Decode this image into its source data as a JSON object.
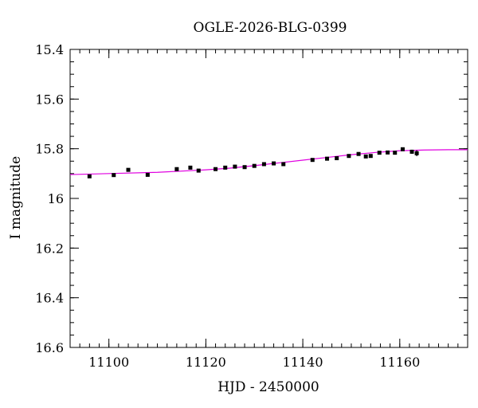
{
  "chart_data": {
    "type": "scatter",
    "title": "OGLE-2026-BLG-0399",
    "xlabel": "HJD - 2450000",
    "ylabel": "I magnitude",
    "xlim": [
      11092,
      11174
    ],
    "ylim": [
      16.6,
      15.4
    ],
    "y_inverted": true,
    "x_ticks": [
      11100,
      11120,
      11140,
      11160
    ],
    "x_tick_labels": [
      "11100",
      "11120",
      "11140",
      "11160"
    ],
    "y_ticks": [
      15.4,
      15.6,
      15.8,
      16.0,
      16.2,
      16.4,
      16.6
    ],
    "y_tick_labels": [
      "15.4",
      "15.6",
      "15.8",
      "16",
      "16.2",
      "16.4",
      "16.6"
    ],
    "x_minor_step": 2,
    "y_minor_step": 0.05,
    "grid": false,
    "series": [
      {
        "kind": "points",
        "color": "#000000",
        "points": [
          {
            "x": 11096.0,
            "y": 15.911,
            "err": 0.006
          },
          {
            "x": 11101.0,
            "y": 15.906,
            "err": 0.006
          },
          {
            "x": 11104.0,
            "y": 15.885,
            "err": 0.006
          },
          {
            "x": 11108.0,
            "y": 15.905,
            "err": 0.006
          },
          {
            "x": 11114.0,
            "y": 15.882,
            "err": 0.005
          },
          {
            "x": 11116.8,
            "y": 15.876,
            "err": 0.006
          },
          {
            "x": 11118.5,
            "y": 15.888,
            "err": 0.006
          },
          {
            "x": 11122.0,
            "y": 15.882,
            "err": 0.006
          },
          {
            "x": 11124.0,
            "y": 15.876,
            "err": 0.005
          },
          {
            "x": 11126.0,
            "y": 15.872,
            "err": 0.005
          },
          {
            "x": 11128.0,
            "y": 15.874,
            "err": 0.005
          },
          {
            "x": 11130.0,
            "y": 15.869,
            "err": 0.005
          },
          {
            "x": 11132.0,
            "y": 15.862,
            "err": 0.005
          },
          {
            "x": 11134.0,
            "y": 15.859,
            "err": 0.005
          },
          {
            "x": 11136.0,
            "y": 15.862,
            "err": 0.005
          },
          {
            "x": 11142.0,
            "y": 15.845,
            "err": 0.005
          },
          {
            "x": 11145.0,
            "y": 15.84,
            "err": 0.005
          },
          {
            "x": 11147.0,
            "y": 15.838,
            "err": 0.005
          },
          {
            "x": 11149.5,
            "y": 15.829,
            "err": 0.005
          },
          {
            "x": 11151.5,
            "y": 15.821,
            "err": 0.005
          },
          {
            "x": 11153.0,
            "y": 15.831,
            "err": 0.006
          },
          {
            "x": 11154.0,
            "y": 15.829,
            "err": 0.006
          },
          {
            "x": 11155.8,
            "y": 15.816,
            "err": 0.005
          },
          {
            "x": 11157.5,
            "y": 15.815,
            "err": 0.005
          },
          {
            "x": 11159.0,
            "y": 15.816,
            "err": 0.005
          },
          {
            "x": 11160.6,
            "y": 15.802,
            "err": 0.006
          },
          {
            "x": 11162.5,
            "y": 15.812,
            "err": 0.008
          },
          {
            "x": 11163.5,
            "y": 15.818,
            "err": 0.012
          }
        ]
      },
      {
        "kind": "model",
        "color": "#e000e0",
        "x": [
          11092,
          11100,
          11110,
          11120,
          11125,
          11130,
          11135,
          11140,
          11145,
          11150,
          11155,
          11160,
          11165,
          11170,
          11174
        ],
        "y": [
          15.904,
          15.9,
          15.895,
          15.885,
          15.878,
          15.868,
          15.857,
          15.846,
          15.835,
          15.824,
          15.815,
          15.808,
          15.805,
          15.804,
          15.804
        ]
      }
    ]
  }
}
